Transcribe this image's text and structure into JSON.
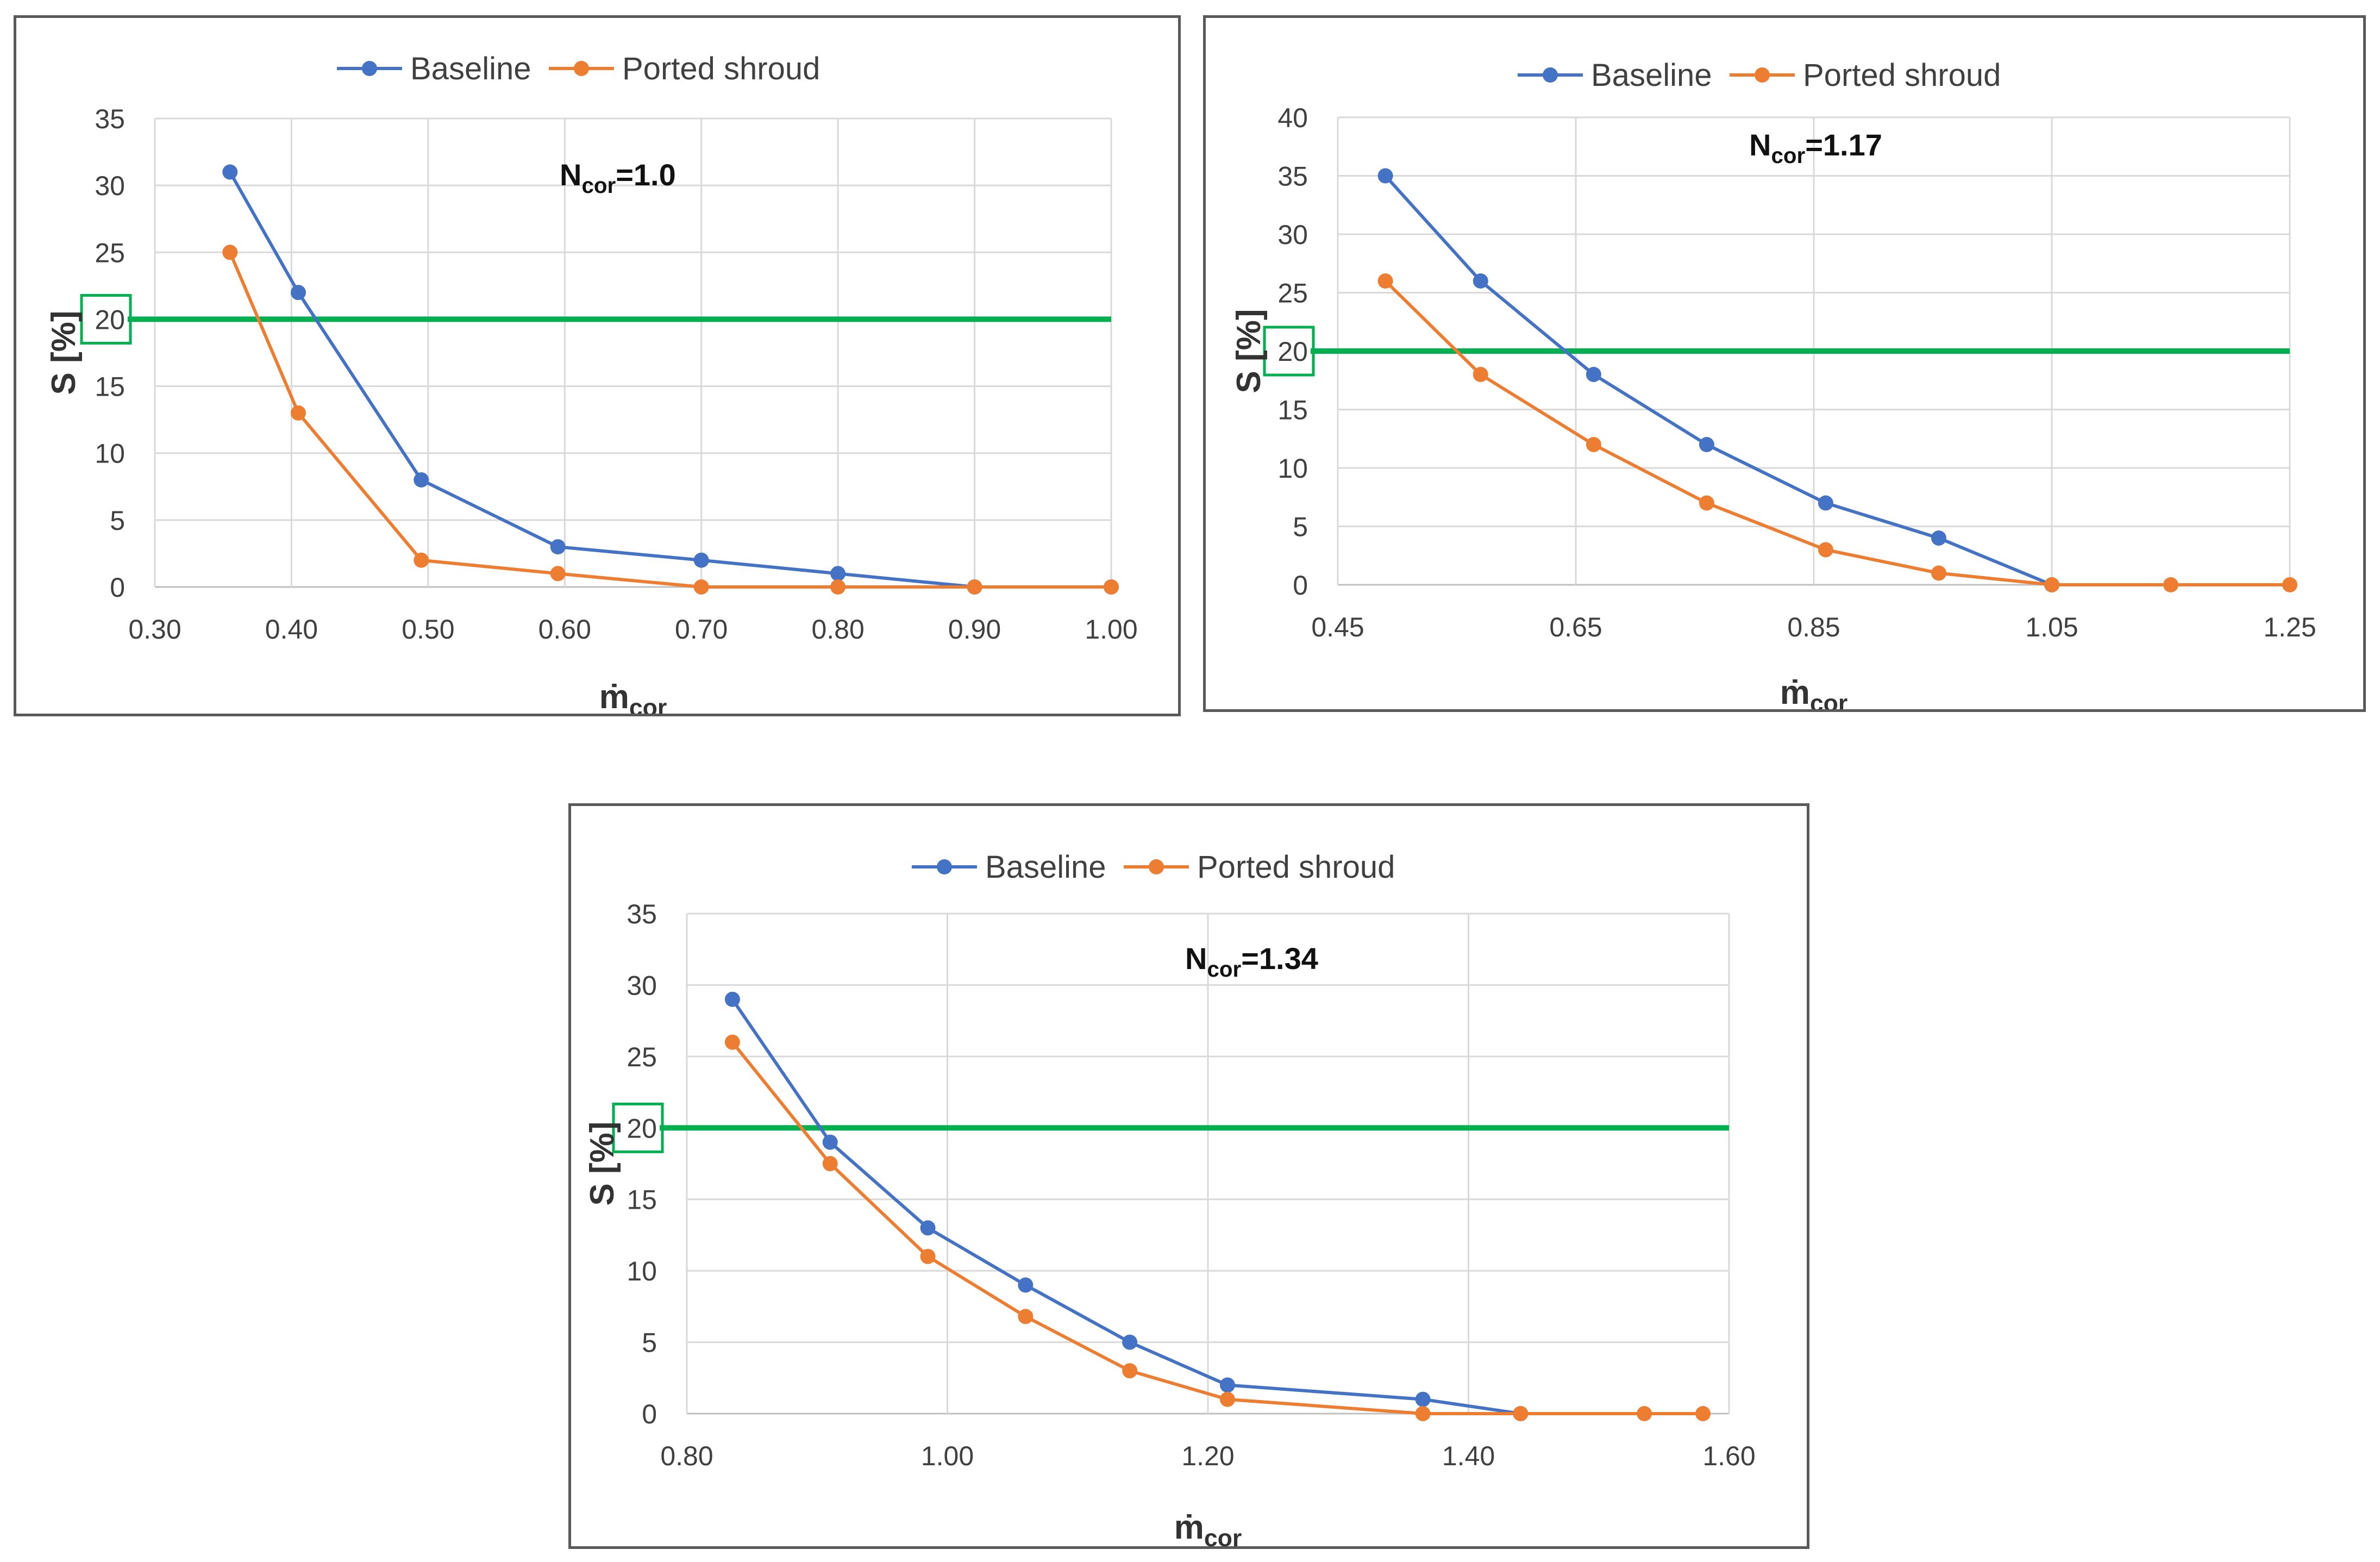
{
  "chart_data": [
    {
      "type": "line",
      "annotation": {
        "main": "N",
        "sub": "cor",
        "suffix": "=1.0"
      },
      "xlabel": {
        "main": "ṁ",
        "sub": "cor"
      },
      "ylabel": "S [%]",
      "xlim": [
        0.3,
        1.0
      ],
      "ylim": [
        0,
        35
      ],
      "x_ticks": [
        0.3,
        0.4,
        0.5,
        0.6,
        0.7,
        0.8,
        0.9,
        1.0
      ],
      "x_tick_labels": [
        "0.30",
        "0.40",
        "0.50",
        "0.60",
        "0.70",
        "0.80",
        "0.90",
        "1.00"
      ],
      "y_ticks": [
        0,
        5,
        10,
        15,
        20,
        25,
        30,
        35
      ],
      "y_tick_labels": [
        "0",
        "5",
        "10",
        "15",
        "20",
        "25",
        "30",
        "35"
      ],
      "grid": true,
      "legend_position": "top-center",
      "threshold": {
        "value": 20,
        "label": "20",
        "color": "#00B050"
      },
      "series": [
        {
          "name": "Baseline",
          "color": "#4472C4",
          "x": [
            0.355,
            0.405,
            0.495,
            0.595,
            0.7,
            0.8,
            0.9,
            1.0
          ],
          "y": [
            31,
            22,
            8,
            3,
            2,
            1,
            0,
            0
          ]
        },
        {
          "name": "Ported shroud",
          "color": "#ED7D31",
          "x": [
            0.355,
            0.405,
            0.495,
            0.595,
            0.7,
            0.8,
            0.9,
            1.0
          ],
          "y": [
            25,
            13,
            2,
            1,
            0,
            0,
            0,
            0
          ]
        }
      ]
    },
    {
      "type": "line",
      "annotation": {
        "main": "N",
        "sub": "cor",
        "suffix": "=1.17"
      },
      "xlabel": {
        "main": "ṁ",
        "sub": "cor"
      },
      "ylabel": "S [%]",
      "xlim": [
        0.45,
        1.25
      ],
      "ylim": [
        0,
        40
      ],
      "x_ticks": [
        0.45,
        0.65,
        0.85,
        1.05,
        1.25
      ],
      "x_tick_labels": [
        "0.45",
        "0.65",
        "0.85",
        "1.05",
        "1.25"
      ],
      "y_ticks": [
        0,
        5,
        10,
        15,
        20,
        25,
        30,
        35,
        40
      ],
      "y_tick_labels": [
        "0",
        "5",
        "10",
        "15",
        "20",
        "25",
        "30",
        "35",
        "40"
      ],
      "grid": true,
      "legend_position": "top-center",
      "threshold": {
        "value": 20,
        "label": "20",
        "color": "#00B050"
      },
      "series": [
        {
          "name": "Baseline",
          "color": "#4472C4",
          "x": [
            0.49,
            0.57,
            0.665,
            0.76,
            0.86,
            0.955,
            1.05
          ],
          "y": [
            35,
            26,
            18,
            12,
            7,
            4,
            0
          ]
        },
        {
          "name": "Ported shroud",
          "color": "#ED7D31",
          "x": [
            0.49,
            0.57,
            0.665,
            0.76,
            0.86,
            0.955,
            1.05,
            1.15,
            1.25
          ],
          "y": [
            26,
            18,
            12,
            7,
            3,
            1,
            0,
            0,
            0
          ]
        }
      ]
    },
    {
      "type": "line",
      "annotation": {
        "main": "N",
        "sub": "cor",
        "suffix": "=1.34"
      },
      "xlabel": {
        "main": "ṁ",
        "sub": "cor"
      },
      "ylabel": "S [%]",
      "xlim": [
        0.8,
        1.6
      ],
      "ylim": [
        0,
        35
      ],
      "x_ticks": [
        0.8,
        1.0,
        1.2,
        1.4,
        1.6
      ],
      "x_tick_labels": [
        "0.80",
        "1.00",
        "1.20",
        "1.40",
        "1.60"
      ],
      "y_ticks": [
        0,
        5,
        10,
        15,
        20,
        25,
        30,
        35
      ],
      "y_tick_labels": [
        "0",
        "5",
        "10",
        "15",
        "20",
        "25",
        "30",
        "35"
      ],
      "grid": true,
      "legend_position": "top-center",
      "threshold": {
        "value": 20,
        "label": "20",
        "color": "#00B050"
      },
      "series": [
        {
          "name": "Baseline",
          "color": "#4472C4",
          "x": [
            0.835,
            0.91,
            0.985,
            1.06,
            1.14,
            1.215,
            1.365,
            1.44
          ],
          "y": [
            29,
            19,
            13,
            9,
            5,
            2,
            1,
            0
          ]
        },
        {
          "name": "Ported shroud",
          "color": "#ED7D31",
          "x": [
            0.835,
            0.91,
            0.985,
            1.06,
            1.14,
            1.215,
            1.365,
            1.44,
            1.535,
            1.58
          ],
          "y": [
            26,
            17.5,
            11,
            6.8,
            3,
            1,
            0,
            0,
            0,
            0
          ]
        }
      ]
    }
  ]
}
